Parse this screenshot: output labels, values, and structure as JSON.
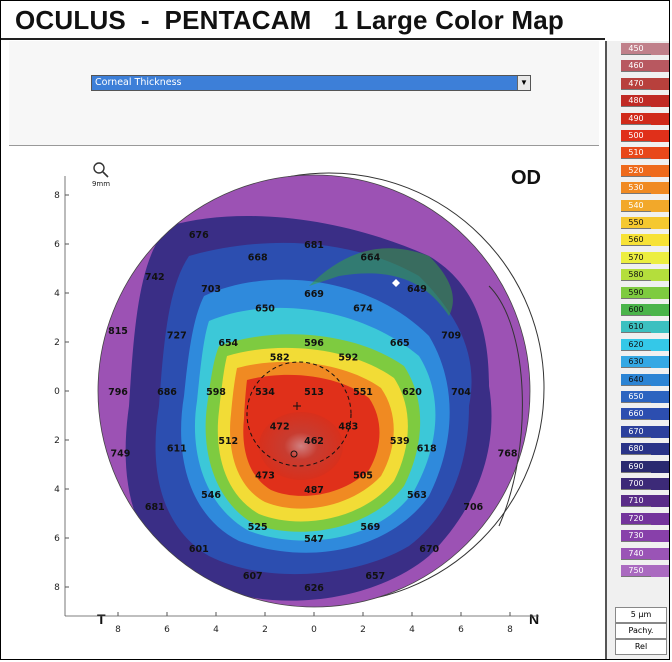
{
  "title": "OCULUS  -  PENTACAM   1 Large Color Map",
  "map_selector": {
    "value": "Corneal Thickness"
  },
  "eye": "OD",
  "zoom_label": "9mm",
  "orientation": {
    "left": "T",
    "right": "N"
  },
  "y_axis_ticks": [
    "8",
    "6",
    "4",
    "2",
    "0",
    "2",
    "4",
    "6",
    "8"
  ],
  "x_axis_ticks": [
    "8",
    "6",
    "4",
    "2",
    "0",
    "2",
    "4",
    "6",
    "8"
  ],
  "thickness_values": [
    {
      "v": "676",
      "x": -4.7,
      "y": 6.4
    },
    {
      "v": "681",
      "x": 0.0,
      "y": 6.0
    },
    {
      "v": "668",
      "x": -2.3,
      "y": 5.5
    },
    {
      "v": "664",
      "x": 2.3,
      "y": 5.5
    },
    {
      "v": "742",
      "x": -6.5,
      "y": 4.7
    },
    {
      "v": "703",
      "x": -4.2,
      "y": 4.2
    },
    {
      "v": "669",
      "x": 0.0,
      "y": 4.0
    },
    {
      "v": "649",
      "x": 4.2,
      "y": 4.2
    },
    {
      "v": "650",
      "x": -2.0,
      "y": 3.4
    },
    {
      "v": "674",
      "x": 2.0,
      "y": 3.4
    },
    {
      "v": "815",
      "x": -8.0,
      "y": 2.5
    },
    {
      "v": "727",
      "x": -5.6,
      "y": 2.3
    },
    {
      "v": "654",
      "x": -3.5,
      "y": 2.0
    },
    {
      "v": "596",
      "x": 0.0,
      "y": 2.0
    },
    {
      "v": "665",
      "x": 3.5,
      "y": 2.0
    },
    {
      "v": "709",
      "x": 5.6,
      "y": 2.3
    },
    {
      "v": "582",
      "x": -1.4,
      "y": 1.4
    },
    {
      "v": "592",
      "x": 1.4,
      "y": 1.4
    },
    {
      "v": "796",
      "x": -8.0,
      "y": 0.0
    },
    {
      "v": "686",
      "x": -6.0,
      "y": 0.0
    },
    {
      "v": "598",
      "x": -4.0,
      "y": 0.0
    },
    {
      "v": "534",
      "x": -2.0,
      "y": 0.0
    },
    {
      "v": "513",
      "x": 0.0,
      "y": 0.0
    },
    {
      "v": "551",
      "x": 2.0,
      "y": 0.0
    },
    {
      "v": "620",
      "x": 4.0,
      "y": 0.0
    },
    {
      "v": "704",
      "x": 6.0,
      "y": 0.0
    },
    {
      "v": "472",
      "x": -1.4,
      "y": -1.4
    },
    {
      "v": "483",
      "x": 1.4,
      "y": -1.4
    },
    {
      "v": "512",
      "x": -3.5,
      "y": -2.0
    },
    {
      "v": "462",
      "x": 0.0,
      "y": -2.0
    },
    {
      "v": "539",
      "x": 3.5,
      "y": -2.0
    },
    {
      "v": "611",
      "x": -5.6,
      "y": -2.3
    },
    {
      "v": "618",
      "x": 4.6,
      "y": -2.3
    },
    {
      "v": "749",
      "x": -7.9,
      "y": -2.5
    },
    {
      "v": "768",
      "x": 7.9,
      "y": -2.5
    },
    {
      "v": "473",
      "x": -2.0,
      "y": -3.4
    },
    {
      "v": "505",
      "x": 2.0,
      "y": -3.4
    },
    {
      "v": "487",
      "x": 0.0,
      "y": -4.0
    },
    {
      "v": "546",
      "x": -4.2,
      "y": -4.2
    },
    {
      "v": "563",
      "x": 4.2,
      "y": -4.2
    },
    {
      "v": "681",
      "x": -6.5,
      "y": -4.7
    },
    {
      "v": "706",
      "x": 6.5,
      "y": -4.7
    },
    {
      "v": "525",
      "x": -2.3,
      "y": -5.5
    },
    {
      "v": "569",
      "x": 2.3,
      "y": -5.5
    },
    {
      "v": "547",
      "x": 0.0,
      "y": -6.0
    },
    {
      "v": "601",
      "x": -4.7,
      "y": -6.4
    },
    {
      "v": "670",
      "x": 4.7,
      "y": -6.4
    },
    {
      "v": "607",
      "x": -2.5,
      "y": -7.5
    },
    {
      "v": "657",
      "x": 2.5,
      "y": -7.5
    },
    {
      "v": "626",
      "x": 0.0,
      "y": -8.0
    }
  ],
  "scale": {
    "items": [
      {
        "label": "450",
        "color": "#c0808a"
      },
      {
        "label": "460",
        "color": "#b85860"
      },
      {
        "label": "470",
        "color": "#b8403c"
      },
      {
        "label": "480",
        "color": "#c02a24"
      },
      {
        "label": "490",
        "color": "#d02a1a"
      },
      {
        "label": "500",
        "color": "#e0301a"
      },
      {
        "label": "510",
        "color": "#e8481a"
      },
      {
        "label": "520",
        "color": "#ee6a1c"
      },
      {
        "label": "530",
        "color": "#f08a22"
      },
      {
        "label": "540",
        "color": "#f2a82a"
      },
      {
        "label": "550",
        "color": "#f5c830"
      },
      {
        "label": "560",
        "color": "#f7e236"
      },
      {
        "label": "570",
        "color": "#ecee40"
      },
      {
        "label": "580",
        "color": "#b4de3c"
      },
      {
        "label": "590",
        "color": "#7ecb40"
      },
      {
        "label": "600",
        "color": "#4ab44a"
      },
      {
        "label": "610",
        "color": "#3cc0c0"
      },
      {
        "label": "620",
        "color": "#34c8e8"
      },
      {
        "label": "630",
        "color": "#34a8e4"
      },
      {
        "label": "640",
        "color": "#2c84d4"
      },
      {
        "label": "650",
        "color": "#2c64c0"
      },
      {
        "label": "660",
        "color": "#2c4eb0"
      },
      {
        "label": "670",
        "color": "#2c409c"
      },
      {
        "label": "680",
        "color": "#2a3488"
      },
      {
        "label": "690",
        "color": "#2a2a70"
      },
      {
        "label": "700",
        "color": "#3c2a78"
      },
      {
        "label": "710",
        "color": "#5a2c88"
      },
      {
        "label": "720",
        "color": "#74349c"
      },
      {
        "label": "730",
        "color": "#8840aa"
      },
      {
        "label": "740",
        "color": "#9a54b6"
      },
      {
        "label": "750",
        "color": "#aa6ac0"
      }
    ],
    "step": "5 µm",
    "type": "Pachy.",
    "mode": "Rel"
  }
}
